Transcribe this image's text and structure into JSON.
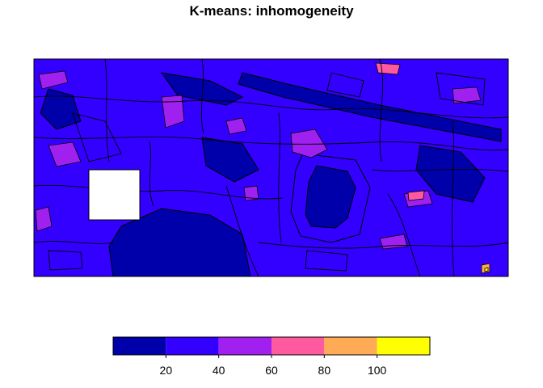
{
  "title": "K-means: inhomogeneity",
  "map": {
    "background": "#3300ff",
    "outline": "#000000",
    "mask": "#ffffff",
    "palette": {
      "dark_blue": "#0000aa",
      "blue": "#3300ff",
      "purple": "#a020f0",
      "pink": "#ff5aa0",
      "orange": "#ffaa55",
      "yellow": "#ffff00"
    }
  },
  "chart_data": {
    "type": "heatmap",
    "title": "K-means: inhomogeneity",
    "legend": {
      "placement": "bottom",
      "breaks": [
        0,
        20,
        40,
        60,
        80,
        100,
        120
      ],
      "tick_labels": [
        "20",
        "40",
        "60",
        "80",
        "100"
      ],
      "colors": [
        "#0000aa",
        "#3300ff",
        "#a020f0",
        "#ff5aa0",
        "#ffaa55",
        "#ffff00"
      ]
    }
  }
}
